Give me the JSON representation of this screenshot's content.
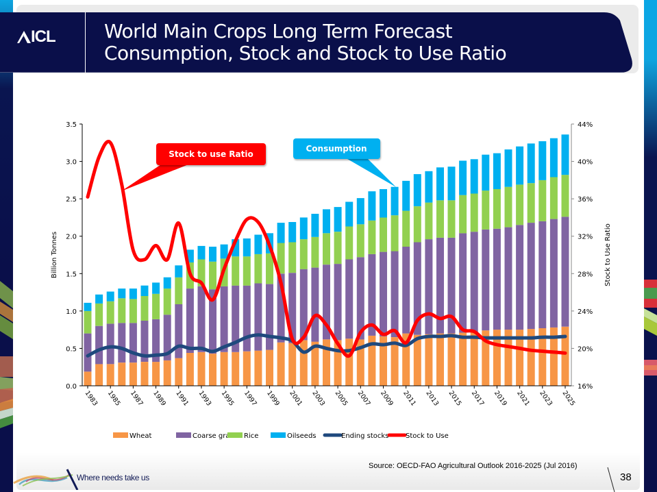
{
  "header": {
    "logo": "ICL",
    "title_line1": "World Main Crops Long Term Forecast",
    "title_line2": "Consumption, Stock and Stock to Use Ratio"
  },
  "footer": {
    "tagline": "Where needs take us",
    "source": "Source: OECD-FAO Agricultural Outlook 2016-2025 (Jul 2016)",
    "page_number": "38"
  },
  "colors": {
    "navy": "#0a0f4a",
    "wheat": "#f79646",
    "coarse_grains": "#8064a2",
    "rice": "#92d050",
    "oilseeds": "#00b0f0",
    "ending_stocks": "#1f497d",
    "stock_to_use": "#ff0000"
  },
  "callouts": {
    "stock_to_use": "Stock to use Ratio",
    "consumption": "Consumption"
  },
  "chart_data": {
    "type": "bar",
    "stacked": true,
    "title": "",
    "xlabel": "",
    "ylabel": "Billion Tonnes",
    "y2label": "Stock to Use Ratio",
    "ylim": [
      0,
      3.5
    ],
    "y2lim": [
      16,
      44
    ],
    "yticks": [
      "0.0",
      "0.5",
      "1.0",
      "1.5",
      "2.0",
      "2.5",
      "3.0",
      "3.5"
    ],
    "y2ticks": [
      "16%",
      "20%",
      "24%",
      "28%",
      "32%",
      "36%",
      "40%",
      "44%"
    ],
    "legend_position": "bottom",
    "grid": false,
    "categories": [
      "1983",
      "1984",
      "1985",
      "1986",
      "1987",
      "1988",
      "1989",
      "1990",
      "1991",
      "1992",
      "1993",
      "1994",
      "1995",
      "1996",
      "1997",
      "1998",
      "1999",
      "2000",
      "2001",
      "2002",
      "2003",
      "2004",
      "2005",
      "2006",
      "2007",
      "2008",
      "2009",
      "2010",
      "2011",
      "2012",
      "2013",
      "2014",
      "2015",
      "2016",
      "2017",
      "2018",
      "2019",
      "2020",
      "2021",
      "2022",
      "2023",
      "2024",
      "2025"
    ],
    "xtick_labels": [
      "1983",
      "1985",
      "1987",
      "1989",
      "1991",
      "1993",
      "1995",
      "1997",
      "1999",
      "2001",
      "2003",
      "2005",
      "2007",
      "2009",
      "2011",
      "2013",
      "2015",
      "2017",
      "2019",
      "2021",
      "2023",
      "2025"
    ],
    "series": [
      {
        "name": "Wheat",
        "kind": "bar",
        "axis": "left",
        "values": [
          0.19,
          0.29,
          0.29,
          0.31,
          0.31,
          0.32,
          0.32,
          0.34,
          0.37,
          0.44,
          0.45,
          0.43,
          0.45,
          0.45,
          0.46,
          0.47,
          0.48,
          0.58,
          0.57,
          0.61,
          0.59,
          0.62,
          0.61,
          0.63,
          0.62,
          0.67,
          0.66,
          0.65,
          0.7,
          0.68,
          0.69,
          0.7,
          0.7,
          0.71,
          0.72,
          0.74,
          0.75,
          0.75,
          0.75,
          0.76,
          0.77,
          0.78,
          0.79
        ]
      },
      {
        "name": "Coarse grains",
        "kind": "bar",
        "axis": "left",
        "values": [
          0.51,
          0.51,
          0.54,
          0.53,
          0.53,
          0.55,
          0.57,
          0.61,
          0.72,
          0.86,
          0.88,
          0.86,
          0.88,
          0.89,
          0.88,
          0.9,
          0.88,
          0.92,
          0.94,
          0.95,
          0.99,
          1.0,
          1.02,
          1.06,
          1.1,
          1.09,
          1.13,
          1.15,
          1.16,
          1.24,
          1.27,
          1.28,
          1.28,
          1.33,
          1.34,
          1.35,
          1.35,
          1.37,
          1.4,
          1.42,
          1.43,
          1.45,
          1.47
        ]
      },
      {
        "name": "Rice",
        "kind": "bar",
        "axis": "left",
        "values": [
          0.3,
          0.3,
          0.3,
          0.33,
          0.32,
          0.33,
          0.34,
          0.35,
          0.36,
          0.35,
          0.36,
          0.37,
          0.37,
          0.39,
          0.39,
          0.39,
          0.41,
          0.41,
          0.41,
          0.4,
          0.41,
          0.42,
          0.43,
          0.44,
          0.44,
          0.45,
          0.46,
          0.48,
          0.48,
          0.48,
          0.49,
          0.5,
          0.5,
          0.51,
          0.51,
          0.52,
          0.53,
          0.54,
          0.54,
          0.53,
          0.55,
          0.56,
          0.56
        ]
      },
      {
        "name": "Oilseeds",
        "kind": "bar",
        "axis": "left",
        "values": [
          0.11,
          0.12,
          0.13,
          0.13,
          0.14,
          0.14,
          0.15,
          0.15,
          0.16,
          0.17,
          0.18,
          0.2,
          0.19,
          0.23,
          0.24,
          0.26,
          0.27,
          0.27,
          0.27,
          0.29,
          0.31,
          0.32,
          0.33,
          0.33,
          0.35,
          0.39,
          0.38,
          0.38,
          0.4,
          0.43,
          0.42,
          0.44,
          0.45,
          0.46,
          0.46,
          0.48,
          0.48,
          0.5,
          0.51,
          0.53,
          0.52,
          0.52,
          0.54
        ]
      },
      {
        "name": "Ending stocks",
        "kind": "line",
        "axis": "left",
        "values": [
          0.4,
          0.48,
          0.52,
          0.5,
          0.44,
          0.4,
          0.41,
          0.43,
          0.53,
          0.5,
          0.5,
          0.46,
          0.52,
          0.58,
          0.65,
          0.68,
          0.66,
          0.64,
          0.6,
          0.45,
          0.53,
          0.5,
          0.47,
          0.47,
          0.51,
          0.56,
          0.55,
          0.57,
          0.54,
          0.63,
          0.66,
          0.66,
          0.67,
          0.65,
          0.65,
          0.64,
          0.64,
          0.64,
          0.64,
          0.64,
          0.65,
          0.65,
          0.66
        ]
      },
      {
        "name": "Stock to Use",
        "kind": "line",
        "axis": "right",
        "unit": "%",
        "values": [
          36.2,
          40.5,
          42.0,
          37.5,
          30.5,
          29.5,
          31.0,
          29.5,
          33.4,
          28.0,
          27.0,
          25.2,
          28.5,
          31.5,
          33.8,
          33.5,
          31.0,
          27.0,
          21.0,
          21.2,
          23.5,
          22.5,
          20.5,
          19.2,
          21.7,
          22.5,
          21.5,
          21.9,
          20.6,
          23.0,
          23.7,
          23.2,
          23.4,
          22.0,
          21.8,
          20.8,
          20.4,
          20.2,
          20.0,
          19.8,
          19.7,
          19.6,
          19.5
        ]
      }
    ],
    "legend": [
      "Wheat",
      "Coarse grains",
      "Rice",
      "Oilseeds",
      "Ending stocks",
      "Stock to Use"
    ]
  }
}
